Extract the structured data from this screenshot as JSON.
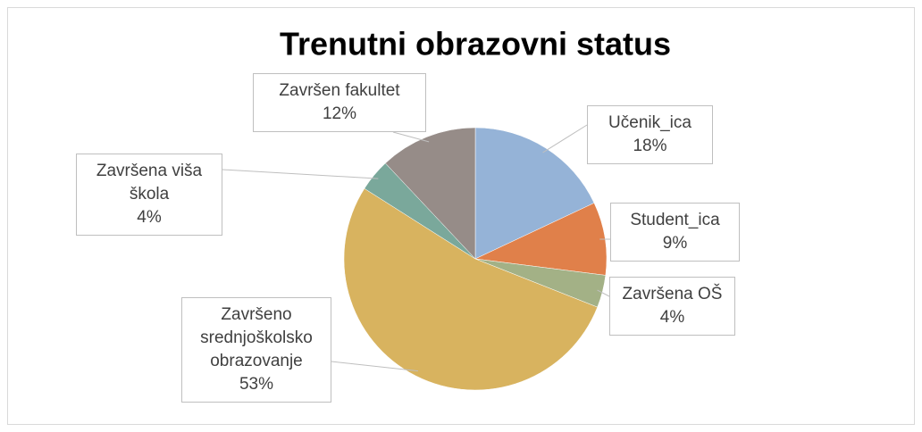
{
  "chart_data": {
    "type": "pie",
    "title": "Trenutni obrazovni status",
    "categories": [
      "Učenik_ica",
      "Student_ica",
      "Završena OŠ",
      "Završeno srednjoškolsko obrazovanje",
      "Završena viša škola",
      "Završen fakultet"
    ],
    "values": [
      18,
      9,
      4,
      53,
      4,
      12
    ],
    "value_labels": [
      "18%",
      "9%",
      "4%",
      "53%",
      "4%",
      "12%"
    ],
    "colors": [
      "#95b3d7",
      "#e0804a",
      "#a3b186",
      "#d8b35f",
      "#7aa89b",
      "#968c88"
    ]
  }
}
